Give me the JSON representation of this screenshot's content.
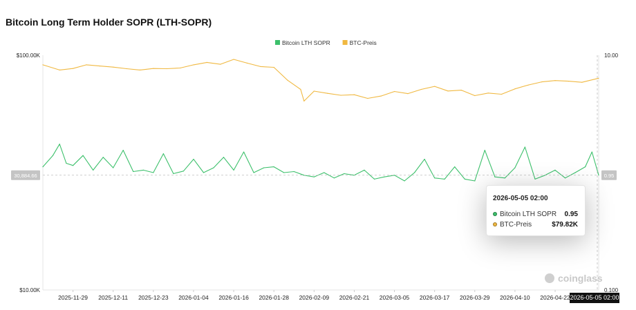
{
  "title": "Bitcoin Long Term Holder SOPR (LTH-SOPR)",
  "colors": {
    "sopr": "#3cc06b",
    "price": "#f0b840",
    "grid": "#ececec",
    "axis_text": "#222222"
  },
  "watermark": "coinglass",
  "crosshair": {
    "y_left_label": "30,884.66",
    "y_right_label": "0.95",
    "x_label": "2026-05-05 02:00"
  },
  "tooltip": {
    "time": "2026-05-05 02:00",
    "rows": [
      {
        "name": "Bitcoin LTH SOPR",
        "value": "0.95",
        "color": "#3cc06b"
      },
      {
        "name": "BTC-Preis",
        "value": "$79.82K",
        "color": "#f0b840"
      }
    ]
  },
  "chart_data": {
    "type": "line",
    "legend": {
      "placement": "top-center",
      "entries": [
        "Bitcoin LTH SOPR",
        "BTC-Preis"
      ]
    },
    "x_range": [
      "2025-11-20",
      "2026-05-05"
    ],
    "x_ticks": [
      "2025-11-29",
      "2025-12-11",
      "2025-12-23",
      "2026-01-04",
      "2026-01-16",
      "2026-01-28",
      "2026-02-09",
      "2026-02-21",
      "2026-03-05",
      "2026-03-17",
      "2026-03-29",
      "2026-04-10",
      "2026-04-22"
    ],
    "y_left": {
      "scale": "log",
      "range": [
        10000,
        100000
      ],
      "ticks": [
        "$100.00K",
        "$10.00K"
      ]
    },
    "y_right": {
      "scale": "log",
      "range": [
        0.1,
        10
      ],
      "ticks": [
        "10.00",
        "0.100"
      ]
    },
    "grid": false,
    "series": [
      {
        "name": "BTC-Preis",
        "axis": "left",
        "x": [
          "2025-11-20",
          "2025-11-25",
          "2025-11-29",
          "2025-12-03",
          "2025-12-07",
          "2025-12-11",
          "2025-12-15",
          "2025-12-19",
          "2025-12-23",
          "2025-12-27",
          "2025-12-31",
          "2026-01-04",
          "2026-01-08",
          "2026-01-12",
          "2026-01-16",
          "2026-01-20",
          "2026-01-24",
          "2026-01-28",
          "2026-02-01",
          "2026-02-05",
          "2026-02-06",
          "2026-02-09",
          "2026-02-13",
          "2026-02-17",
          "2026-02-21",
          "2026-02-25",
          "2026-03-01",
          "2026-03-05",
          "2026-03-09",
          "2026-03-13",
          "2026-03-17",
          "2026-03-21",
          "2026-03-25",
          "2026-03-29",
          "2026-04-02",
          "2026-04-06",
          "2026-04-10",
          "2026-04-14",
          "2026-04-18",
          "2026-04-22",
          "2026-04-26",
          "2026-04-30",
          "2026-05-05"
        ],
        "y": [
          91000,
          86500,
          87800,
          91000,
          90000,
          89000,
          87600,
          86500,
          87800,
          87600,
          88200,
          91000,
          93200,
          91500,
          96000,
          92600,
          89500,
          88800,
          78400,
          71500,
          63800,
          70300,
          68800,
          67500,
          67900,
          65500,
          67000,
          70100,
          68600,
          71500,
          73700,
          70400,
          71000,
          67300,
          69000,
          68200,
          71900,
          74700,
          77000,
          78000,
          77500,
          76700,
          79820
        ]
      },
      {
        "name": "Bitcoin LTH SOPR",
        "axis": "right",
        "x": [
          "2025-11-20",
          "2025-11-23",
          "2025-11-25",
          "2025-11-27",
          "2025-11-29",
          "2025-12-02",
          "2025-12-05",
          "2025-12-08",
          "2025-12-11",
          "2025-12-14",
          "2025-12-17",
          "2025-12-20",
          "2025-12-23",
          "2025-12-26",
          "2025-12-29",
          "2026-01-01",
          "2026-01-04",
          "2026-01-07",
          "2026-01-10",
          "2026-01-13",
          "2026-01-16",
          "2026-01-19",
          "2026-01-22",
          "2026-01-25",
          "2026-01-28",
          "2026-01-31",
          "2026-02-03",
          "2026-02-06",
          "2026-02-09",
          "2026-02-12",
          "2026-02-15",
          "2026-02-18",
          "2026-02-21",
          "2026-02-24",
          "2026-02-27",
          "2026-03-02",
          "2026-03-05",
          "2026-03-08",
          "2026-03-11",
          "2026-03-14",
          "2026-03-17",
          "2026-03-20",
          "2026-03-23",
          "2026-03-26",
          "2026-03-29",
          "2026-04-01",
          "2026-04-04",
          "2026-04-07",
          "2026-04-10",
          "2026-04-13",
          "2026-04-16",
          "2026-04-19",
          "2026-04-22",
          "2026-04-25",
          "2026-04-28",
          "2026-05-01",
          "2026-05-03",
          "2026-05-05"
        ],
        "y": [
          1.12,
          1.4,
          1.75,
          1.2,
          1.15,
          1.4,
          1.05,
          1.35,
          1.1,
          1.55,
          1.02,
          1.05,
          1.0,
          1.45,
          0.98,
          1.03,
          1.3,
          1.0,
          1.1,
          1.35,
          1.05,
          1.5,
          1.0,
          1.1,
          1.12,
          1.0,
          1.02,
          0.95,
          0.92,
          1.0,
          0.9,
          0.98,
          0.95,
          1.05,
          0.88,
          0.92,
          0.95,
          0.85,
          1.0,
          1.3,
          0.9,
          0.88,
          1.12,
          0.88,
          0.85,
          1.55,
          0.92,
          0.9,
          1.1,
          1.65,
          0.88,
          0.95,
          1.05,
          0.9,
          1.0,
          1.12,
          1.5,
          0.95
        ]
      }
    ]
  }
}
